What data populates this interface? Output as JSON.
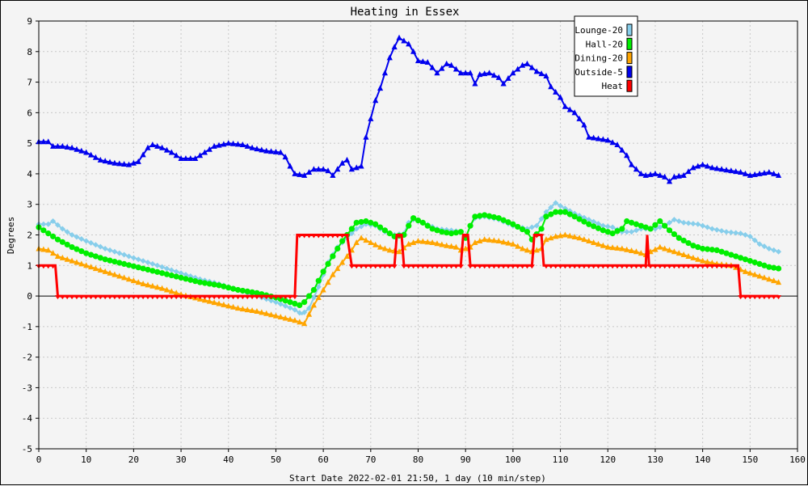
{
  "chart_data": {
    "type": "line",
    "title": "Heating in Essex",
    "xlabel": "Start Date 2022-02-01 21:50, 1 day (10 min/step)",
    "ylabel": "Degrees",
    "xlim": [
      0,
      160
    ],
    "ylim": [
      -5,
      9
    ],
    "xticks": [
      0,
      10,
      20,
      30,
      40,
      50,
      60,
      70,
      80,
      90,
      100,
      110,
      120,
      130,
      140,
      150,
      160
    ],
    "yticks": [
      -5,
      -4,
      -3,
      -2,
      -1,
      0,
      1,
      2,
      3,
      4,
      5,
      6,
      7,
      8,
      9
    ],
    "grid": true,
    "legend_position": "top-right",
    "series": [
      {
        "name": "Lounge-20",
        "color": "#87ceeb",
        "marker": "diamond",
        "points": [
          [
            0,
            2.35
          ],
          [
            2,
            2.35
          ],
          [
            3,
            2.45
          ],
          [
            5,
            2.2
          ],
          [
            7,
            2.0
          ],
          [
            10,
            1.8
          ],
          [
            14,
            1.55
          ],
          [
            18,
            1.35
          ],
          [
            22,
            1.15
          ],
          [
            26,
            0.95
          ],
          [
            30,
            0.75
          ],
          [
            34,
            0.55
          ],
          [
            38,
            0.4
          ],
          [
            42,
            0.2
          ],
          [
            46,
            0.0
          ],
          [
            50,
            -0.2
          ],
          [
            54,
            -0.45
          ],
          [
            55.5,
            -0.6
          ],
          [
            57,
            -0.4
          ],
          [
            59,
            0.3
          ],
          [
            61,
            1.1
          ],
          [
            63,
            1.6
          ],
          [
            65,
            1.9
          ],
          [
            67,
            2.2
          ],
          [
            69,
            2.35
          ],
          [
            71,
            2.3
          ],
          [
            73,
            2.1
          ],
          [
            75,
            2.0
          ],
          [
            77,
            2.05
          ],
          [
            78,
            2.4
          ],
          [
            79,
            2.5
          ],
          [
            81,
            2.4
          ],
          [
            84,
            2.2
          ],
          [
            87,
            2.15
          ],
          [
            89,
            2.1
          ],
          [
            90,
            1.9
          ],
          [
            91,
            2.3
          ],
          [
            92,
            2.55
          ],
          [
            94,
            2.6
          ],
          [
            97,
            2.5
          ],
          [
            100,
            2.3
          ],
          [
            103,
            2.2
          ],
          [
            105,
            2.3
          ],
          [
            107,
            2.75
          ],
          [
            109,
            3.05
          ],
          [
            110,
            2.95
          ],
          [
            113,
            2.7
          ],
          [
            116,
            2.5
          ],
          [
            119,
            2.3
          ],
          [
            121,
            2.25
          ],
          [
            123,
            2.1
          ],
          [
            125,
            2.1
          ],
          [
            127,
            2.2
          ],
          [
            130,
            2.2
          ],
          [
            132,
            2.3
          ],
          [
            134,
            2.5
          ],
          [
            136,
            2.4
          ],
          [
            139,
            2.35
          ],
          [
            142,
            2.2
          ],
          [
            145,
            2.1
          ],
          [
            148,
            2.05
          ],
          [
            150,
            1.95
          ],
          [
            152,
            1.7
          ],
          [
            154,
            1.55
          ],
          [
            156,
            1.45
          ]
        ]
      },
      {
        "name": "Hall-20",
        "color": "#00ee00",
        "marker": "circle",
        "points": [
          [
            0,
            2.25
          ],
          [
            2,
            2.05
          ],
          [
            4,
            1.85
          ],
          [
            7,
            1.6
          ],
          [
            10,
            1.4
          ],
          [
            14,
            1.2
          ],
          [
            18,
            1.05
          ],
          [
            22,
            0.9
          ],
          [
            26,
            0.75
          ],
          [
            30,
            0.6
          ],
          [
            34,
            0.45
          ],
          [
            38,
            0.35
          ],
          [
            42,
            0.2
          ],
          [
            46,
            0.1
          ],
          [
            50,
            -0.05
          ],
          [
            53,
            -0.2
          ],
          [
            55,
            -0.3
          ],
          [
            56,
            -0.2
          ],
          [
            58,
            0.2
          ],
          [
            60,
            0.8
          ],
          [
            62,
            1.3
          ],
          [
            64,
            1.8
          ],
          [
            66,
            2.2
          ],
          [
            67,
            2.4
          ],
          [
            69,
            2.45
          ],
          [
            71,
            2.35
          ],
          [
            73,
            2.15
          ],
          [
            75,
            1.95
          ],
          [
            77,
            2.0
          ],
          [
            78,
            2.3
          ],
          [
            79,
            2.55
          ],
          [
            81,
            2.4
          ],
          [
            83,
            2.2
          ],
          [
            85,
            2.1
          ],
          [
            87,
            2.05
          ],
          [
            89,
            2.1
          ],
          [
            90,
            1.9
          ],
          [
            91,
            2.3
          ],
          [
            92,
            2.6
          ],
          [
            94,
            2.65
          ],
          [
            97,
            2.55
          ],
          [
            100,
            2.35
          ],
          [
            103,
            2.1
          ],
          [
            104,
            1.85
          ],
          [
            106,
            2.2
          ],
          [
            107,
            2.6
          ],
          [
            109,
            2.75
          ],
          [
            111,
            2.75
          ],
          [
            113,
            2.6
          ],
          [
            116,
            2.35
          ],
          [
            119,
            2.15
          ],
          [
            121,
            2.05
          ],
          [
            123,
            2.2
          ],
          [
            124,
            2.45
          ],
          [
            126,
            2.35
          ],
          [
            128,
            2.25
          ],
          [
            129,
            2.2
          ],
          [
            131,
            2.45
          ],
          [
            133,
            2.15
          ],
          [
            135,
            1.9
          ],
          [
            138,
            1.65
          ],
          [
            140,
            1.55
          ],
          [
            143,
            1.5
          ],
          [
            146,
            1.35
          ],
          [
            149,
            1.2
          ],
          [
            152,
            1.05
          ],
          [
            154,
            0.95
          ],
          [
            156,
            0.9
          ]
        ]
      },
      {
        "name": "Dining-20",
        "color": "#ffa500",
        "marker": "triangle",
        "points": [
          [
            0,
            1.55
          ],
          [
            2,
            1.5
          ],
          [
            4,
            1.3
          ],
          [
            7,
            1.15
          ],
          [
            10,
            1.0
          ],
          [
            14,
            0.8
          ],
          [
            18,
            0.6
          ],
          [
            22,
            0.4
          ],
          [
            26,
            0.25
          ],
          [
            30,
            0.05
          ],
          [
            34,
            -0.1
          ],
          [
            38,
            -0.25
          ],
          [
            42,
            -0.4
          ],
          [
            46,
            -0.5
          ],
          [
            50,
            -0.65
          ],
          [
            54,
            -0.8
          ],
          [
            56,
            -0.9
          ],
          [
            58,
            -0.3
          ],
          [
            60,
            0.2
          ],
          [
            62,
            0.7
          ],
          [
            64,
            1.1
          ],
          [
            66,
            1.5
          ],
          [
            67,
            1.75
          ],
          [
            68,
            1.9
          ],
          [
            70,
            1.75
          ],
          [
            72,
            1.6
          ],
          [
            74,
            1.5
          ],
          [
            76,
            1.45
          ],
          [
            78,
            1.7
          ],
          [
            80,
            1.8
          ],
          [
            83,
            1.75
          ],
          [
            86,
            1.65
          ],
          [
            88,
            1.6
          ],
          [
            89,
            1.5
          ],
          [
            91,
            1.6
          ],
          [
            92,
            1.75
          ],
          [
            94,
            1.85
          ],
          [
            97,
            1.8
          ],
          [
            100,
            1.7
          ],
          [
            102,
            1.55
          ],
          [
            104,
            1.45
          ],
          [
            106,
            1.55
          ],
          [
            107,
            1.85
          ],
          [
            109,
            1.95
          ],
          [
            111,
            2.0
          ],
          [
            114,
            1.9
          ],
          [
            117,
            1.75
          ],
          [
            120,
            1.6
          ],
          [
            123,
            1.55
          ],
          [
            126,
            1.45
          ],
          [
            128,
            1.35
          ],
          [
            129,
            1.45
          ],
          [
            131,
            1.6
          ],
          [
            134,
            1.45
          ],
          [
            137,
            1.3
          ],
          [
            140,
            1.15
          ],
          [
            143,
            1.05
          ],
          [
            146,
            1.0
          ],
          [
            149,
            0.8
          ],
          [
            152,
            0.65
          ],
          [
            154,
            0.55
          ],
          [
            156,
            0.45
          ]
        ]
      },
      {
        "name": "Outside-5",
        "color": "#0000ee",
        "marker": "triangle",
        "points": [
          [
            0,
            5.05
          ],
          [
            2,
            5.05
          ],
          [
            3,
            4.9
          ],
          [
            5,
            4.9
          ],
          [
            7,
            4.85
          ],
          [
            10,
            4.7
          ],
          [
            13,
            4.45
          ],
          [
            16,
            4.35
          ],
          [
            19,
            4.3
          ],
          [
            21,
            4.4
          ],
          [
            23,
            4.85
          ],
          [
            24,
            4.95
          ],
          [
            26,
            4.85
          ],
          [
            28,
            4.7
          ],
          [
            30,
            4.5
          ],
          [
            33,
            4.5
          ],
          [
            35,
            4.7
          ],
          [
            37,
            4.9
          ],
          [
            40,
            5.0
          ],
          [
            43,
            4.95
          ],
          [
            45,
            4.85
          ],
          [
            48,
            4.75
          ],
          [
            51,
            4.7
          ],
          [
            52,
            4.55
          ],
          [
            53,
            4.25
          ],
          [
            54,
            4.0
          ],
          [
            56,
            3.95
          ],
          [
            58,
            4.15
          ],
          [
            60,
            4.15
          ],
          [
            61,
            4.1
          ],
          [
            62,
            3.95
          ],
          [
            63,
            4.15
          ],
          [
            64,
            4.35
          ],
          [
            65,
            4.45
          ],
          [
            66,
            4.15
          ],
          [
            67,
            4.2
          ],
          [
            68,
            4.25
          ],
          [
            69,
            5.2
          ],
          [
            70,
            5.8
          ],
          [
            71,
            6.4
          ],
          [
            72,
            6.8
          ],
          [
            73,
            7.3
          ],
          [
            74,
            7.8
          ],
          [
            75,
            8.15
          ],
          [
            76,
            8.45
          ],
          [
            77,
            8.35
          ],
          [
            78,
            8.25
          ],
          [
            79,
            8.0
          ],
          [
            80,
            7.7
          ],
          [
            82,
            7.65
          ],
          [
            84,
            7.3
          ],
          [
            86,
            7.6
          ],
          [
            87,
            7.55
          ],
          [
            89,
            7.3
          ],
          [
            91,
            7.3
          ],
          [
            92,
            6.95
          ],
          [
            93,
            7.25
          ],
          [
            95,
            7.3
          ],
          [
            97,
            7.15
          ],
          [
            98,
            6.95
          ],
          [
            100,
            7.3
          ],
          [
            102,
            7.55
          ],
          [
            103,
            7.6
          ],
          [
            105,
            7.35
          ],
          [
            107,
            7.2
          ],
          [
            108,
            6.85
          ],
          [
            110,
            6.5
          ],
          [
            111,
            6.2
          ],
          [
            113,
            6.0
          ],
          [
            115,
            5.6
          ],
          [
            116,
            5.2
          ],
          [
            118,
            5.15
          ],
          [
            120,
            5.1
          ],
          [
            122,
            4.95
          ],
          [
            124,
            4.6
          ],
          [
            125,
            4.3
          ],
          [
            127,
            4.0
          ],
          [
            128,
            3.95
          ],
          [
            130,
            4.0
          ],
          [
            131,
            3.95
          ],
          [
            132,
            3.9
          ],
          [
            133,
            3.75
          ],
          [
            134,
            3.9
          ],
          [
            136,
            3.95
          ],
          [
            138,
            4.2
          ],
          [
            140,
            4.3
          ],
          [
            142,
            4.2
          ],
          [
            144,
            4.15
          ],
          [
            146,
            4.1
          ],
          [
            148,
            4.05
          ],
          [
            150,
            3.95
          ],
          [
            152,
            4.0
          ],
          [
            154,
            4.05
          ],
          [
            156,
            3.95
          ]
        ]
      },
      {
        "name": "Heat",
        "color": "#ff0000",
        "marker": "down-triangle",
        "points": [
          [
            0,
            1
          ],
          [
            3.5,
            1
          ],
          [
            4,
            0
          ],
          [
            54,
            0
          ],
          [
            54.5,
            2
          ],
          [
            65,
            2
          ],
          [
            66,
            1
          ],
          [
            75,
            1
          ],
          [
            75.5,
            2
          ],
          [
            76.5,
            2
          ],
          [
            77,
            1
          ],
          [
            89,
            1
          ],
          [
            89.5,
            2
          ],
          [
            90.5,
            2
          ],
          [
            91,
            1
          ],
          [
            104,
            1
          ],
          [
            104.5,
            2
          ],
          [
            106,
            2
          ],
          [
            106.5,
            1
          ],
          [
            128,
            1
          ],
          [
            128.3,
            2
          ],
          [
            128.7,
            1
          ],
          [
            147.5,
            1
          ],
          [
            148,
            0
          ],
          [
            156,
            0
          ]
        ]
      }
    ]
  }
}
